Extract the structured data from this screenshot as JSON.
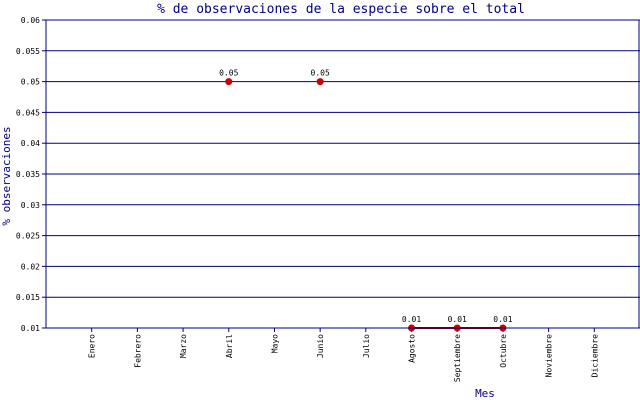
{
  "chart_data": {
    "type": "line",
    "title": "% de observaciones de la especie sobre el total",
    "xlabel": "Mes",
    "ylabel": "% observaciones",
    "ylim": [
      0.01,
      0.06
    ],
    "yticks": [
      "0.01",
      "0.015",
      "0.02",
      "0.025",
      "0.03",
      "0.035",
      "0.04",
      "0.045",
      "0.05",
      "0.055",
      "0.06"
    ],
    "grid": true,
    "categories": [
      "Enero",
      "Febrero",
      "Marzo",
      "Abril",
      "Mayo",
      "Junio",
      "Julio",
      "Agosto",
      "Septiembre",
      "Octubre",
      "Noviembre",
      "Diciembre"
    ],
    "points": [
      {
        "category": "Abril",
        "value": 0.05,
        "label": "0.05"
      },
      {
        "category": "Junio",
        "value": 0.05,
        "label": "0.05"
      },
      {
        "category": "Agosto",
        "value": 0.01,
        "label": "0.01"
      },
      {
        "category": "Septiembre",
        "value": 0.01,
        "label": "0.01"
      },
      {
        "category": "Octubre",
        "value": 0.01,
        "label": "0.01"
      }
    ],
    "segments": [
      [
        "Agosto",
        "Septiembre"
      ],
      [
        "Septiembre",
        "Octubre"
      ]
    ],
    "colors": {
      "axis": "#000080",
      "grid": "#000080",
      "series": "#cc0000",
      "line": "#990000"
    }
  }
}
